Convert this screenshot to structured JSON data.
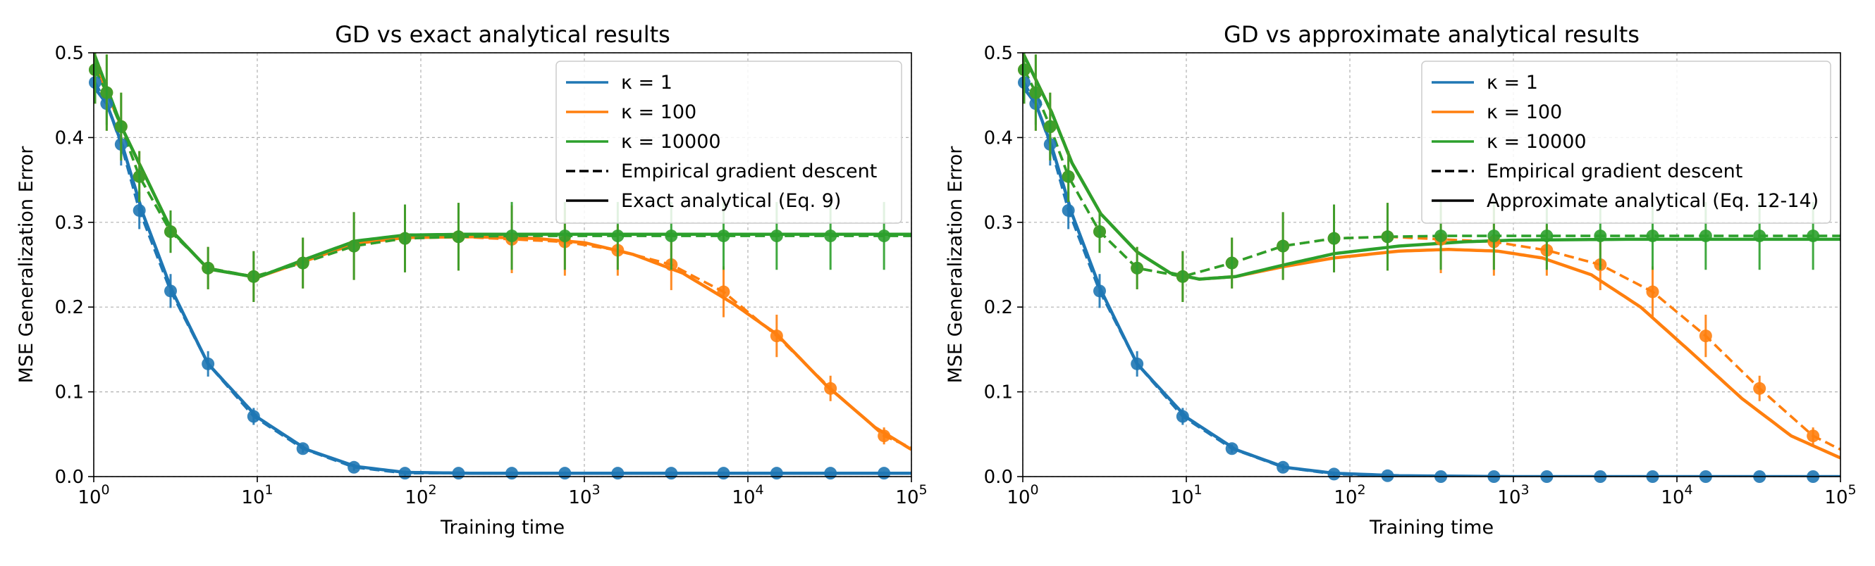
{
  "colors": {
    "k1": "#1f77b4",
    "k100": "#ff7f0e",
    "k10000": "#2ca02c",
    "legend_line": "#000000"
  },
  "chart_data": [
    {
      "type": "line",
      "title": "GD vs exact analytical results",
      "xlabel": "Training time",
      "ylabel": "MSE Generalization Error",
      "x_scale": "log",
      "xlim": [
        1,
        100000
      ],
      "ylim": [
        0.0,
        0.5
      ],
      "x_ticks": [
        {
          "base": "10",
          "exp": "0"
        },
        {
          "base": "10",
          "exp": "1"
        },
        {
          "base": "10",
          "exp": "2"
        },
        {
          "base": "10",
          "exp": "3"
        },
        {
          "base": "10",
          "exp": "4"
        },
        {
          "base": "10",
          "exp": "5"
        }
      ],
      "y_ticks": [
        "0.0",
        "0.1",
        "0.2",
        "0.3",
        "0.4",
        "0.5"
      ],
      "grid": true,
      "legend_position": "top-right",
      "legend": [
        {
          "label": "κ = 1",
          "style": "solid",
          "color": "#1f77b4"
        },
        {
          "label": "κ = 100",
          "style": "solid",
          "color": "#ff7f0e"
        },
        {
          "label": "κ = 10000",
          "style": "solid",
          "color": "#2ca02c"
        },
        {
          "label": "Empirical gradient descent",
          "style": "dashed",
          "color": "#000000"
        },
        {
          "label": "Exact analytical (Eq. 9)",
          "style": "solid",
          "color": "#000000"
        }
      ],
      "series": [
        {
          "key": "k1",
          "kind": "analytical",
          "color": "#1f77b4",
          "x": [
            1,
            1.2,
            1.5,
            2,
            3,
            5,
            10,
            20,
            40,
            80,
            200,
            1000,
            100000
          ],
          "y": [
            0.46,
            0.44,
            0.39,
            0.31,
            0.22,
            0.133,
            0.07,
            0.032,
            0.012,
            0.005,
            0.004,
            0.004,
            0.004
          ]
        },
        {
          "key": "k1",
          "kind": "empirical",
          "color": "#1f77b4",
          "x": [
            1.02,
            1.2,
            1.47,
            1.9,
            2.95,
            5,
            9.5,
            19,
            39,
            80,
            170,
            360,
            760,
            1600,
            3400,
            7100,
            15000,
            32000,
            68000,
            100000
          ],
          "y": [
            0.465,
            0.44,
            0.392,
            0.314,
            0.219,
            0.133,
            0.071,
            0.033,
            0.011,
            0.004,
            0.004,
            0.004,
            0.004,
            0.004,
            0.004,
            0.004,
            0.004,
            0.004,
            0.004,
            0.004
          ]
        },
        {
          "key": "k100",
          "kind": "analytical",
          "color": "#ff7f0e",
          "x": [
            1,
            1.5,
            3,
            5,
            10,
            20,
            40,
            80,
            200,
            500,
            1000,
            2000,
            4000,
            8000,
            15000,
            30000,
            60000,
            100000
          ],
          "y": [
            0.49,
            0.41,
            0.29,
            0.245,
            0.235,
            0.255,
            0.275,
            0.282,
            0.283,
            0.281,
            0.276,
            0.262,
            0.24,
            0.205,
            0.168,
            0.108,
            0.058,
            0.032
          ]
        },
        {
          "key": "k100",
          "kind": "empirical",
          "color": "#ff7f0e",
          "x": [
            1.02,
            1.2,
            1.47,
            1.9,
            2.95,
            5,
            9.5,
            19,
            39,
            80,
            170,
            360,
            760,
            1600,
            3400,
            7100,
            15000,
            32000,
            68000,
            100000
          ],
          "y": [
            0.48,
            0.453,
            0.413,
            0.354,
            0.289,
            0.246,
            0.236,
            0.252,
            0.272,
            0.281,
            0.283,
            0.28,
            0.277,
            0.267,
            0.25,
            0.218,
            0.166,
            0.104,
            0.048,
            0.034
          ]
        },
        {
          "key": "k10000",
          "kind": "analytical",
          "color": "#2ca02c",
          "x": [
            1,
            1.5,
            3,
            5,
            10,
            20,
            40,
            80,
            200,
            1000,
            100000
          ],
          "y": [
            0.5,
            0.41,
            0.29,
            0.245,
            0.235,
            0.257,
            0.278,
            0.285,
            0.286,
            0.286,
            0.286
          ]
        },
        {
          "key": "k10000",
          "kind": "empirical",
          "color": "#2ca02c",
          "x": [
            1.02,
            1.2,
            1.47,
            1.9,
            2.95,
            5,
            9.5,
            19,
            39,
            80,
            170,
            360,
            760,
            1600,
            3400,
            7100,
            15000,
            32000,
            68000,
            100000
          ],
          "y": [
            0.48,
            0.453,
            0.413,
            0.354,
            0.289,
            0.246,
            0.236,
            0.252,
            0.272,
            0.281,
            0.283,
            0.284,
            0.284,
            0.284,
            0.284,
            0.284,
            0.284,
            0.284,
            0.284,
            0.284
          ]
        }
      ],
      "markers": [
        {
          "key": "k1",
          "x": [
            1.02,
            1.2,
            1.47,
            1.9,
            2.95,
            5,
            9.5,
            19,
            39,
            80,
            170,
            360,
            760,
            1600,
            3400,
            7100,
            15000,
            32000,
            68000
          ],
          "y": [
            0.465,
            0.44,
            0.392,
            0.314,
            0.219,
            0.133,
            0.071,
            0.033,
            0.011,
            0.004,
            0.004,
            0.004,
            0.004,
            0.004,
            0.004,
            0.004,
            0.004,
            0.004,
            0.004
          ],
          "err": [
            0.02,
            0.025,
            0.025,
            0.022,
            0.02,
            0.015,
            0.01,
            0.005,
            0.004,
            0.003,
            0.002,
            0.002,
            0.002,
            0.002,
            0.002,
            0.002,
            0.002,
            0.002,
            0.002
          ]
        },
        {
          "key": "k100",
          "x": [
            1.02,
            1.2,
            1.47,
            1.9,
            2.95,
            5,
            9.5,
            19,
            39,
            80,
            170,
            360,
            760,
            1600,
            3400,
            7100,
            15000,
            32000,
            68000
          ],
          "y": [
            0.48,
            0.453,
            0.413,
            0.354,
            0.289,
            0.246,
            0.236,
            0.252,
            0.272,
            0.281,
            0.283,
            0.28,
            0.277,
            0.267,
            0.25,
            0.218,
            0.166,
            0.104,
            0.048
          ],
          "err": [
            0.04,
            0.045,
            0.04,
            0.03,
            0.025,
            0.025,
            0.03,
            0.03,
            0.04,
            0.04,
            0.04,
            0.04,
            0.04,
            0.03,
            0.03,
            0.03,
            0.025,
            0.015,
            0.01
          ]
        },
        {
          "key": "k10000",
          "x": [
            1.02,
            1.2,
            1.47,
            1.9,
            2.95,
            5,
            9.5,
            19,
            39,
            80,
            170,
            360,
            760,
            1600,
            3400,
            7100,
            15000,
            32000,
            68000
          ],
          "y": [
            0.48,
            0.453,
            0.413,
            0.354,
            0.289,
            0.246,
            0.236,
            0.252,
            0.272,
            0.281,
            0.283,
            0.284,
            0.284,
            0.284,
            0.284,
            0.284,
            0.284,
            0.284,
            0.284
          ],
          "err": [
            0.04,
            0.045,
            0.04,
            0.03,
            0.025,
            0.025,
            0.03,
            0.03,
            0.04,
            0.04,
            0.04,
            0.04,
            0.04,
            0.04,
            0.04,
            0.04,
            0.04,
            0.04,
            0.04
          ]
        }
      ]
    },
    {
      "type": "line",
      "title": "GD vs approximate analytical results",
      "xlabel": "Training time",
      "ylabel": "MSE Generalization Error",
      "x_scale": "log",
      "xlim": [
        1,
        100000
      ],
      "ylim": [
        0.0,
        0.5
      ],
      "x_ticks": [
        {
          "base": "10",
          "exp": "0"
        },
        {
          "base": "10",
          "exp": "1"
        },
        {
          "base": "10",
          "exp": "2"
        },
        {
          "base": "10",
          "exp": "3"
        },
        {
          "base": "10",
          "exp": "4"
        },
        {
          "base": "10",
          "exp": "5"
        }
      ],
      "y_ticks": [
        "0.0",
        "0.1",
        "0.2",
        "0.3",
        "0.4",
        "0.5"
      ],
      "grid": true,
      "legend_position": "top-right",
      "legend": [
        {
          "label": "κ = 1",
          "style": "solid",
          "color": "#1f77b4"
        },
        {
          "label": "κ = 100",
          "style": "solid",
          "color": "#ff7f0e"
        },
        {
          "label": "κ = 10000",
          "style": "solid",
          "color": "#2ca02c"
        },
        {
          "label": "Empirical gradient descent",
          "style": "dashed",
          "color": "#000000"
        },
        {
          "label": "Approximate analytical (Eq. 12-14)",
          "style": "solid",
          "color": "#000000"
        }
      ],
      "series": [
        {
          "key": "k1",
          "kind": "analytical",
          "color": "#1f77b4",
          "x": [
            1,
            1.2,
            1.5,
            2,
            3,
            5,
            10,
            20,
            40,
            80,
            200,
            1000,
            100000
          ],
          "y": [
            0.46,
            0.44,
            0.39,
            0.31,
            0.22,
            0.133,
            0.07,
            0.032,
            0.011,
            0.004,
            0.001,
            0.0,
            0.0
          ]
        },
        {
          "key": "k1",
          "kind": "empirical",
          "color": "#1f77b4",
          "x": [
            1.02,
            1.2,
            1.47,
            1.9,
            2.95,
            5,
            9.5,
            19,
            39,
            80,
            170,
            360,
            760,
            1600,
            3400,
            7100,
            15000,
            32000,
            68000,
            100000
          ],
          "y": [
            0.465,
            0.44,
            0.392,
            0.314,
            0.219,
            0.133,
            0.071,
            0.033,
            0.011,
            0.003,
            0.001,
            0.0,
            0.0,
            0.0,
            0.0,
            0.0,
            0.0,
            0.0,
            0.0,
            0.0
          ]
        },
        {
          "key": "k100",
          "kind": "analytical",
          "color": "#ff7f0e",
          "x": [
            1,
            1.5,
            2,
            3,
            5,
            8,
            12,
            20,
            40,
            80,
            200,
            400,
            800,
            1500,
            3000,
            6000,
            12000,
            25000,
            50000,
            100000
          ],
          "y": [
            0.5,
            0.43,
            0.37,
            0.31,
            0.265,
            0.24,
            0.233,
            0.236,
            0.248,
            0.258,
            0.266,
            0.268,
            0.266,
            0.258,
            0.238,
            0.2,
            0.148,
            0.092,
            0.048,
            0.022
          ]
        },
        {
          "key": "k100",
          "kind": "empirical",
          "color": "#ff7f0e",
          "x": [
            1.02,
            1.2,
            1.47,
            1.9,
            2.95,
            5,
            9.5,
            19,
            39,
            80,
            170,
            360,
            760,
            1600,
            3400,
            7100,
            15000,
            32000,
            68000,
            100000
          ],
          "y": [
            0.48,
            0.453,
            0.413,
            0.354,
            0.289,
            0.246,
            0.236,
            0.252,
            0.272,
            0.281,
            0.283,
            0.28,
            0.277,
            0.267,
            0.25,
            0.218,
            0.166,
            0.104,
            0.048,
            0.032
          ]
        },
        {
          "key": "k10000",
          "kind": "analytical",
          "color": "#2ca02c",
          "x": [
            1,
            1.5,
            2,
            3,
            5,
            8,
            12,
            20,
            40,
            80,
            200,
            500,
            1000,
            5000,
            100000
          ],
          "y": [
            0.5,
            0.43,
            0.37,
            0.31,
            0.265,
            0.24,
            0.233,
            0.236,
            0.25,
            0.263,
            0.272,
            0.277,
            0.279,
            0.28,
            0.28
          ]
        },
        {
          "key": "k10000",
          "kind": "empirical",
          "color": "#2ca02c",
          "x": [
            1.02,
            1.2,
            1.47,
            1.9,
            2.95,
            5,
            9.5,
            19,
            39,
            80,
            170,
            360,
            760,
            1600,
            3400,
            7100,
            15000,
            32000,
            68000,
            100000
          ],
          "y": [
            0.48,
            0.453,
            0.413,
            0.354,
            0.289,
            0.246,
            0.236,
            0.252,
            0.272,
            0.281,
            0.283,
            0.284,
            0.284,
            0.284,
            0.284,
            0.284,
            0.284,
            0.284,
            0.284,
            0.284
          ]
        }
      ],
      "markers": [
        {
          "key": "k1",
          "x": [
            1.02,
            1.2,
            1.47,
            1.9,
            2.95,
            5,
            9.5,
            19,
            39,
            80,
            170,
            360,
            760,
            1600,
            3400,
            7100,
            15000,
            32000,
            68000
          ],
          "y": [
            0.465,
            0.44,
            0.392,
            0.314,
            0.219,
            0.133,
            0.071,
            0.033,
            0.011,
            0.003,
            0.001,
            0.0,
            0.0,
            0.0,
            0.0,
            0.0,
            0.0,
            0.0,
            0.0
          ],
          "err": [
            0.02,
            0.025,
            0.025,
            0.022,
            0.02,
            0.015,
            0.01,
            0.005,
            0.004,
            0.003,
            0.002,
            0.002,
            0.002,
            0.002,
            0.002,
            0.002,
            0.002,
            0.002,
            0.002
          ]
        },
        {
          "key": "k100",
          "x": [
            1.02,
            1.2,
            1.47,
            1.9,
            2.95,
            5,
            9.5,
            19,
            39,
            80,
            170,
            360,
            760,
            1600,
            3400,
            7100,
            15000,
            32000,
            68000
          ],
          "y": [
            0.48,
            0.453,
            0.413,
            0.354,
            0.289,
            0.246,
            0.236,
            0.252,
            0.272,
            0.281,
            0.283,
            0.28,
            0.277,
            0.267,
            0.25,
            0.218,
            0.166,
            0.104,
            0.048
          ],
          "err": [
            0.04,
            0.045,
            0.04,
            0.03,
            0.025,
            0.025,
            0.03,
            0.03,
            0.04,
            0.04,
            0.04,
            0.04,
            0.04,
            0.03,
            0.03,
            0.03,
            0.025,
            0.015,
            0.01
          ]
        },
        {
          "key": "k10000",
          "x": [
            1.02,
            1.2,
            1.47,
            1.9,
            2.95,
            5,
            9.5,
            19,
            39,
            80,
            170,
            360,
            760,
            1600,
            3400,
            7100,
            15000,
            32000,
            68000
          ],
          "y": [
            0.48,
            0.453,
            0.413,
            0.354,
            0.289,
            0.246,
            0.236,
            0.252,
            0.272,
            0.281,
            0.283,
            0.284,
            0.284,
            0.284,
            0.284,
            0.284,
            0.284,
            0.284,
            0.284
          ],
          "err": [
            0.04,
            0.045,
            0.04,
            0.03,
            0.025,
            0.025,
            0.03,
            0.03,
            0.04,
            0.04,
            0.04,
            0.04,
            0.04,
            0.04,
            0.04,
            0.04,
            0.04,
            0.04,
            0.04
          ]
        }
      ]
    }
  ]
}
